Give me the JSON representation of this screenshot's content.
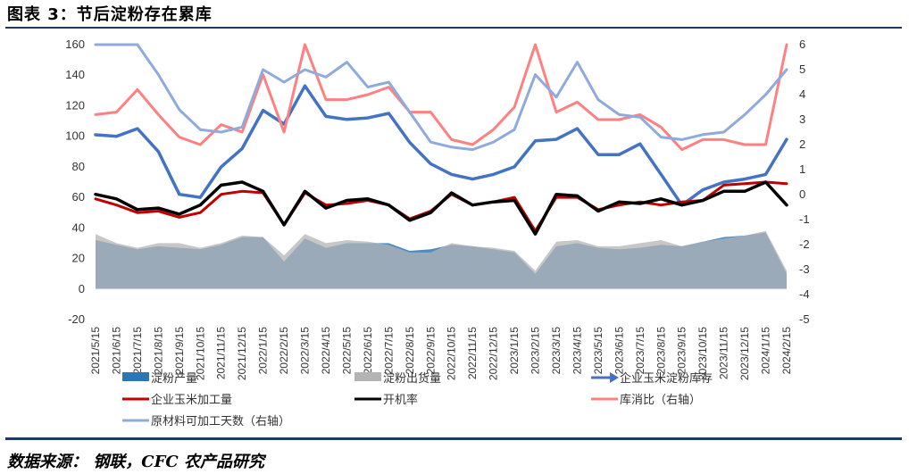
{
  "title": "图表 3：节后淀粉存在累库",
  "source": "数据来源：  钢联，CFC 农产品研究",
  "chart_data": {
    "type": "line",
    "x": [
      "2021/5/15",
      "2021/6/15",
      "2021/7/15",
      "2021/8/15",
      "2021/9/15",
      "2021/10/15",
      "2021/11/15",
      "2021/12/15",
      "2022/1/15",
      "2022/2/15",
      "2022/3/15",
      "2022/4/15",
      "2022/5/15",
      "2022/6/15",
      "2022/7/15",
      "2022/8/15",
      "2022/9/15",
      "2022/10/15",
      "2022/11/15",
      "2022/12/15",
      "2023/1/15",
      "2023/2/15",
      "2023/3/15",
      "2023/4/15",
      "2023/5/15",
      "2023/6/15",
      "2023/7/15",
      "2023/8/15",
      "2023/9/15",
      "2023/10/15",
      "2023/11/15",
      "2023/12/15",
      "2024/1/15",
      "2024/2/15"
    ],
    "y_left": {
      "min": -20,
      "max": 160,
      "ticks": [
        -20,
        0,
        20,
        40,
        60,
        80,
        100,
        120,
        140,
        160
      ]
    },
    "y_right": {
      "min": -5,
      "max": 6,
      "ticks": [
        -5,
        -4,
        -3,
        -2,
        -1,
        0,
        1,
        2,
        3,
        4,
        5,
        6
      ]
    },
    "legend_position": "bottom",
    "grid": false,
    "series": [
      {
        "name": "淀粉产量",
        "kind": "area",
        "axis": "left",
        "color": "#2e75b6",
        "values": [
          32,
          29,
          26,
          28,
          27,
          26,
          29,
          34,
          34,
          18,
          33,
          27,
          30,
          30,
          30,
          25,
          26,
          29,
          28,
          26,
          24,
          10,
          28,
          30,
          27,
          26,
          27,
          29,
          28,
          31,
          34,
          35,
          37,
          10
        ]
      },
      {
        "name": "淀粉出货量",
        "kind": "area",
        "axis": "left",
        "color": "#b4b4b4",
        "values": [
          36,
          30,
          27,
          30,
          30,
          27,
          30,
          35,
          34,
          22,
          36,
          30,
          32,
          31,
          29,
          24,
          24,
          30,
          28,
          27,
          25,
          12,
          31,
          32,
          28,
          28,
          30,
          32,
          28,
          31,
          33,
          35,
          38,
          12
        ]
      },
      {
        "name": "企业玉米淀粉库存",
        "kind": "line",
        "axis": "left",
        "color": "#4472c4",
        "values": [
          101,
          100,
          105,
          90,
          62,
          60,
          80,
          92,
          117,
          108,
          133,
          113,
          111,
          112,
          115,
          96,
          82,
          75,
          72,
          75,
          80,
          97,
          98,
          105,
          88,
          88,
          95,
          75,
          55,
          65,
          70,
          72,
          75,
          98
        ]
      },
      {
        "name": "企业玉米加工量",
        "kind": "line",
        "axis": "left",
        "color": "#c00000",
        "values": [
          59,
          55,
          50,
          51,
          47,
          50,
          62,
          64,
          63,
          42,
          63,
          55,
          56,
          58,
          55,
          46,
          51,
          62,
          55,
          57,
          60,
          38,
          60,
          60,
          52,
          55,
          57,
          55,
          57,
          58,
          68,
          69,
          70,
          69
        ]
      },
      {
        "name": "开机率",
        "kind": "line",
        "axis": "left",
        "color": "#000000",
        "values": [
          62,
          59,
          52,
          53,
          49,
          55,
          68,
          70,
          64,
          42,
          64,
          53,
          58,
          59,
          55,
          45,
          50,
          63,
          55,
          57,
          58,
          36,
          62,
          61,
          51,
          57,
          56,
          59,
          55,
          58,
          64,
          64,
          70,
          55
        ]
      },
      {
        "name": "库消比（右轴）",
        "kind": "line",
        "axis": "right",
        "color": "#ff8080",
        "values": [
          3.2,
          3.3,
          4.2,
          3.2,
          2.3,
          2.0,
          2.8,
          2.5,
          4.8,
          2.5,
          6.0,
          3.8,
          3.8,
          4.0,
          4.3,
          3.3,
          3.3,
          2.2,
          2.0,
          2.6,
          3.5,
          6.0,
          3.3,
          3.7,
          3.0,
          3.0,
          3.2,
          2.7,
          1.8,
          2.2,
          2.2,
          2.0,
          2.0,
          6.0
        ]
      },
      {
        "name": "原材料可加工天数（右轴）",
        "kind": "line",
        "axis": "right",
        "color": "#8faadc",
        "values": [
          6.0,
          6.0,
          6.0,
          4.8,
          3.4,
          2.6,
          2.5,
          2.7,
          5.0,
          4.5,
          5.0,
          4.7,
          5.3,
          4.3,
          4.5,
          3.3,
          2.1,
          1.9,
          1.8,
          2.1,
          2.6,
          4.8,
          3.9,
          5.3,
          3.8,
          3.2,
          3.1,
          2.3,
          2.2,
          2.4,
          2.5,
          3.2,
          4.0,
          5.0
        ]
      }
    ]
  }
}
